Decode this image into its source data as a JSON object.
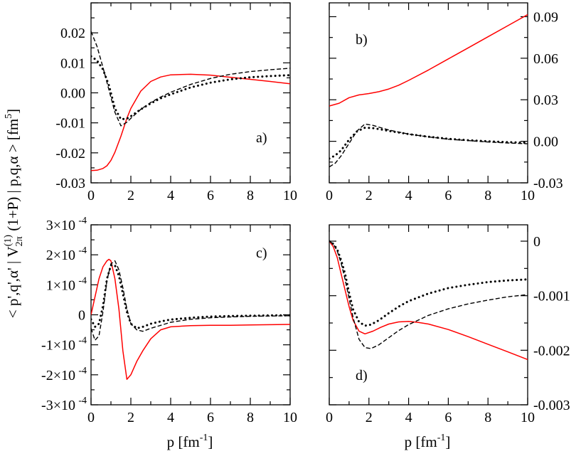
{
  "figure": {
    "ylabel_main": "< p',q',α' | V",
    "ylabel_sub": "2π",
    "ylabel_sup": "(1)",
    "ylabel_rest": " (1+P) | p,q,α > [fm",
    "ylabel_exp": "5",
    "ylabel_end": "]",
    "xlabel_main": "p [fm",
    "xlabel_exp": "-1",
    "xlabel_end": "]"
  },
  "colors": {
    "red": "#ff0000",
    "black": "#000000"
  },
  "chart_data": [
    {
      "id": "a",
      "type": "line",
      "label": "a)",
      "xlim": [
        0,
        10
      ],
      "ylim": [
        -0.03,
        0.03
      ],
      "xticks": [
        "0",
        "2",
        "4",
        "6",
        "8",
        "10"
      ],
      "yticks": [
        "-0.03",
        "-0.02",
        "-0.01",
        "0.00",
        "0.01",
        "0.02"
      ],
      "ytick_values": [
        -0.03,
        -0.02,
        -0.01,
        0.0,
        0.01,
        0.02
      ],
      "ytick_side": "left",
      "series": [
        {
          "name": "red-solid",
          "color": "#ff0000",
          "style": "solid",
          "x": [
            0,
            0.3,
            0.6,
            0.8,
            1.0,
            1.2,
            1.5,
            1.8,
            2.0,
            2.5,
            3.0,
            3.5,
            4.0,
            5.0,
            6.0,
            7.0,
            8.0,
            9.0,
            10.0
          ],
          "y": [
            -0.0259,
            -0.0258,
            -0.0252,
            -0.0243,
            -0.0225,
            -0.0198,
            -0.0145,
            -0.0085,
            -0.0052,
            0.0006,
            0.0038,
            0.0053,
            0.006,
            0.0062,
            0.0059,
            0.0052,
            0.0045,
            0.0038,
            0.003
          ]
        },
        {
          "name": "black-dashed",
          "color": "#000000",
          "style": "dashed",
          "x": [
            0,
            0.3,
            0.6,
            0.9,
            1.2,
            1.5,
            1.8,
            2.0,
            2.5,
            3.0,
            3.5,
            4.0,
            5.0,
            6.0,
            7.0,
            8.0,
            9.0,
            10.0
          ],
          "y": [
            0.0205,
            0.0155,
            0.0085,
            0.001,
            -0.0065,
            -0.011,
            -0.0098,
            -0.0085,
            -0.0055,
            -0.0032,
            -0.0014,
            0.0002,
            0.0028,
            0.0048,
            0.0062,
            0.0071,
            0.0077,
            0.0082
          ]
        },
        {
          "name": "black-dotted",
          "color": "#000000",
          "style": "dotted",
          "x": [
            0,
            0.3,
            0.6,
            0.9,
            1.2,
            1.5,
            1.8,
            2.0,
            2.5,
            3.0,
            3.5,
            4.0,
            5.0,
            6.0,
            7.0,
            8.0,
            9.0,
            10.0
          ],
          "y": [
            0.0122,
            0.0108,
            0.0078,
            0.0025,
            -0.0052,
            -0.0088,
            -0.0086,
            -0.0078,
            -0.0055,
            -0.0035,
            -0.0018,
            -0.0005,
            0.0018,
            0.0034,
            0.0045,
            0.0052,
            0.0056,
            0.0059
          ]
        }
      ]
    },
    {
      "id": "b",
      "type": "line",
      "label": "b)",
      "xlim": [
        0,
        10
      ],
      "ylim": [
        -0.03,
        0.1
      ],
      "xticks": [
        "0",
        "2",
        "4",
        "6",
        "8",
        "10"
      ],
      "yticks": [
        "-0.03",
        "0.00",
        "0.03",
        "0.06",
        "0.09"
      ],
      "ytick_values": [
        -0.03,
        0.0,
        0.03,
        0.06,
        0.09
      ],
      "ytick_side": "right",
      "series": [
        {
          "name": "red-solid",
          "color": "#ff0000",
          "style": "solid",
          "x": [
            0,
            0.5,
            1.0,
            1.5,
            2.0,
            2.5,
            3.0,
            3.5,
            4.0,
            5.0,
            6.0,
            7.0,
            8.0,
            9.0,
            10.0
          ],
          "y": [
            0.0255,
            0.0275,
            0.0315,
            0.0335,
            0.0345,
            0.0358,
            0.0378,
            0.0405,
            0.044,
            0.0515,
            0.0595,
            0.0675,
            0.0755,
            0.0835,
            0.0915
          ]
        },
        {
          "name": "black-dashed",
          "color": "#000000",
          "style": "dashed",
          "x": [
            0,
            0.3,
            0.6,
            1.0,
            1.4,
            1.8,
            2.2,
            2.6,
            3.0,
            4.0,
            5.0,
            6.0,
            7.0,
            8.0,
            9.0,
            10.0
          ],
          "y": [
            -0.0185,
            -0.0158,
            -0.0105,
            -0.0015,
            0.0075,
            0.0125,
            0.0115,
            0.0098,
            0.0082,
            0.0052,
            0.0032,
            0.0015,
            0.0005,
            -0.0005,
            -0.0012,
            -0.0018
          ]
        },
        {
          "name": "black-dotted",
          "color": "#000000",
          "style": "dotted",
          "x": [
            0,
            0.3,
            0.6,
            1.0,
            1.4,
            1.8,
            2.2,
            2.6,
            3.0,
            4.0,
            5.0,
            6.0,
            7.0,
            8.0,
            9.0,
            10.0
          ],
          "y": [
            -0.0125,
            -0.0102,
            -0.0065,
            0.0012,
            0.0072,
            0.0098,
            0.0095,
            0.0086,
            0.0075,
            0.0052,
            0.0033,
            0.0018,
            0.0008,
            0.0,
            -0.0006,
            -0.001
          ]
        }
      ]
    },
    {
      "id": "c",
      "type": "line",
      "label": "c)",
      "xlim": [
        0,
        10
      ],
      "ylim": [
        -0.0003,
        0.0003
      ],
      "xticks": [
        "0",
        "2",
        "4",
        "6",
        "8",
        "10"
      ],
      "yticks": [
        "-3×10",
        "-2×10",
        "-1×10",
        "0",
        "1×10",
        "2×10",
        "3×10"
      ],
      "ytick_exp": [
        "-4",
        "-4",
        "-4",
        "",
        "-4",
        "-4",
        "-4"
      ],
      "ytick_values": [
        -0.0003,
        -0.0002,
        -0.0001,
        0.0,
        0.0001,
        0.0002,
        0.0003
      ],
      "ytick_side": "left",
      "series": [
        {
          "name": "red-solid",
          "color": "#ff0000",
          "style": "solid",
          "x": [
            0,
            0.2,
            0.4,
            0.6,
            0.8,
            0.9,
            1.0,
            1.2,
            1.4,
            1.6,
            1.8,
            2.0,
            2.3,
            2.6,
            3.0,
            3.5,
            4.0,
            5.0,
            6.0,
            7.0,
            8.0,
            9.0,
            10.0
          ],
          "y": [
            0.0,
            6e-05,
            0.00012,
            0.00016,
            0.00018,
            0.000185,
            0.00018,
            0.00012,
            2e-05,
            -0.00012,
            -0.000215,
            -0.0002,
            -0.000155,
            -0.00012,
            -8e-05,
            -5e-05,
            -4e-05,
            -3.6e-05,
            -3.5e-05,
            -3.5e-05,
            -3.4e-05,
            -3.3e-05,
            -3.2e-05
          ]
        },
        {
          "name": "black-dashed",
          "color": "#000000",
          "style": "dashed",
          "x": [
            0,
            0.2,
            0.4,
            0.6,
            0.8,
            1.0,
            1.2,
            1.4,
            1.6,
            1.8,
            2.0,
            2.3,
            2.6,
            3.0,
            3.5,
            4.0,
            5.0,
            6.0,
            7.0,
            8.0,
            9.0,
            10.0
          ],
          "y": [
            -4.5e-05,
            -8.5e-05,
            -7e-05,
            1e-05,
            0.000115,
            0.00017,
            0.00018,
            0.00015,
            9e-05,
            2e-05,
            -3e-05,
            -5e-05,
            -5.5e-05,
            -4.5e-05,
            -3.5e-05,
            -2.5e-05,
            -1.5e-05,
            -1e-05,
            -7e-06,
            -5e-06,
            -4e-06,
            -3e-06
          ]
        },
        {
          "name": "black-dotted",
          "color": "#000000",
          "style": "dotted",
          "x": [
            0,
            0.2,
            0.4,
            0.6,
            0.8,
            1.0,
            1.2,
            1.4,
            1.6,
            1.8,
            2.0,
            2.3,
            2.6,
            3.0,
            3.5,
            4.0,
            5.0,
            6.0,
            7.0,
            8.0,
            9.0,
            10.0
          ],
          "y": [
            -1.5e-05,
            -4e-05,
            -3e-05,
            3e-05,
            0.00012,
            0.000165,
            0.000165,
            0.00013,
            7e-05,
            1e-05,
            -3e-05,
            -4.5e-05,
            -4e-05,
            -3e-05,
            -2.2e-05,
            -1.6e-05,
            -1e-05,
            -6e-06,
            -4e-06,
            -3e-06,
            -2e-06,
            -2e-06
          ]
        }
      ]
    },
    {
      "id": "d",
      "type": "line",
      "label": "d)",
      "xlim": [
        0,
        10
      ],
      "ylim": [
        -0.003,
        0.0003
      ],
      "xticks": [
        "0",
        "2",
        "4",
        "6",
        "8",
        "10"
      ],
      "yticks": [
        "-0.003",
        "-0.002",
        "-0.001",
        "0"
      ],
      "ytick_values": [
        -0.003,
        -0.002,
        -0.001,
        0.0
      ],
      "ytick_side": "right",
      "series": [
        {
          "name": "red-solid",
          "color": "#ff0000",
          "style": "solid",
          "x": [
            0,
            0.2,
            0.4,
            0.6,
            0.8,
            1.0,
            1.2,
            1.5,
            1.8,
            2.2,
            2.6,
            3.0,
            3.5,
            4.0,
            4.5,
            5.0,
            6.0,
            7.0,
            8.0,
            9.0,
            10.0
          ],
          "y": [
            0.0,
            -0.0001,
            -0.0003,
            -0.0006,
            -0.0009,
            -0.0012,
            -0.00145,
            -0.00165,
            -0.0017,
            -0.00165,
            -0.00158,
            -0.00152,
            -0.00148,
            -0.00147,
            -0.00149,
            -0.00152,
            -0.00162,
            -0.00175,
            -0.00189,
            -0.00203,
            -0.00217
          ]
        },
        {
          "name": "black-dashed",
          "color": "#000000",
          "style": "dashed",
          "x": [
            0,
            0.2,
            0.4,
            0.6,
            0.8,
            1.0,
            1.2,
            1.5,
            1.8,
            2.1,
            2.5,
            3.0,
            3.5,
            4.0,
            5.0,
            6.0,
            7.0,
            8.0,
            9.0,
            10.0
          ],
          "y": [
            0.0,
            -5e-05,
            -0.00018,
            -0.0004,
            -0.0007,
            -0.00105,
            -0.0014,
            -0.0018,
            -0.00195,
            -0.00197,
            -0.0019,
            -0.00177,
            -0.00164,
            -0.00153,
            -0.00136,
            -0.00124,
            -0.00115,
            -0.00108,
            -0.00102,
            -0.00098
          ]
        },
        {
          "name": "black-dotted",
          "color": "#000000",
          "style": "dotted",
          "x": [
            0,
            0.2,
            0.4,
            0.6,
            0.8,
            1.0,
            1.2,
            1.5,
            1.8,
            2.1,
            2.5,
            3.0,
            3.5,
            4.0,
            5.0,
            6.0,
            7.0,
            8.0,
            9.0,
            10.0
          ],
          "y": [
            0.0,
            -5e-05,
            -0.00015,
            -0.00035,
            -0.0006,
            -0.00095,
            -0.00125,
            -0.00148,
            -0.00155,
            -0.00153,
            -0.00145,
            -0.00132,
            -0.0012,
            -0.0011,
            -0.00096,
            -0.00086,
            -0.0008,
            -0.00075,
            -0.00072,
            -0.0007
          ]
        }
      ]
    }
  ]
}
